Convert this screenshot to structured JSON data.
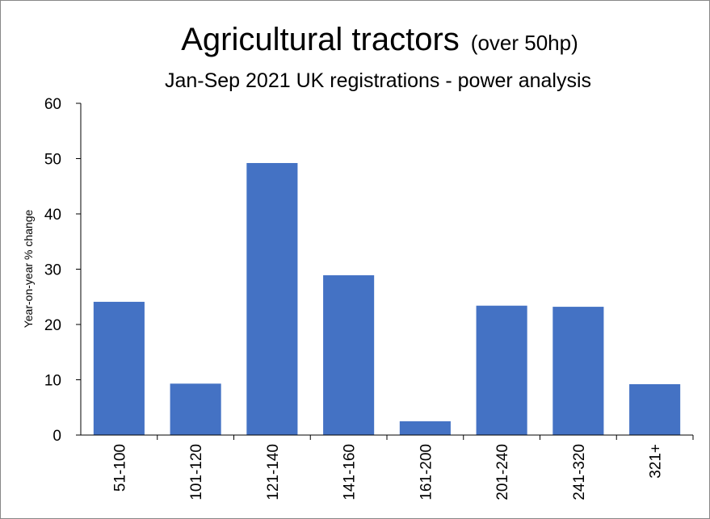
{
  "chart_data": {
    "type": "bar",
    "title": "Agricultural tractors",
    "title_note": "(over 50hp)",
    "subtitle": "Jan-Sep 2021 UK registrations - power analysis",
    "y_label": "Year-on-year  % change",
    "categories": [
      "51-100",
      "101-120",
      "121-140",
      "141-160",
      "161-200",
      "201-240",
      "241-320",
      "321+"
    ],
    "values": [
      24.1,
      9.3,
      49.2,
      28.9,
      2.5,
      23.4,
      23.2,
      9.2
    ],
    "color": "#4472c4",
    "ylim": [
      0,
      60
    ],
    "yticks": [
      0,
      10,
      20,
      30,
      40,
      50,
      60
    ],
    "grid": false
  }
}
